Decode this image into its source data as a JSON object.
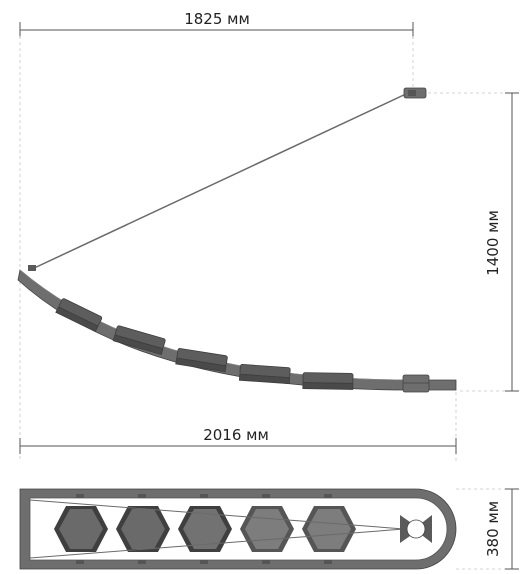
{
  "dimensions": {
    "top_width": "1825 мм",
    "bottom_width": "2016 мм",
    "height": "1400 мм",
    "depth": "380 мм"
  },
  "colors": {
    "line": "#555555",
    "dash": "#bbbbbb",
    "metal": "#6e6e6e",
    "metal_dark": "#4a4a4a",
    "panel": "#5d5d5d",
    "hex_light": "#8a8a8a"
  },
  "views": {
    "side": "side-elevation",
    "top": "plan-view"
  },
  "panel_count": 5
}
